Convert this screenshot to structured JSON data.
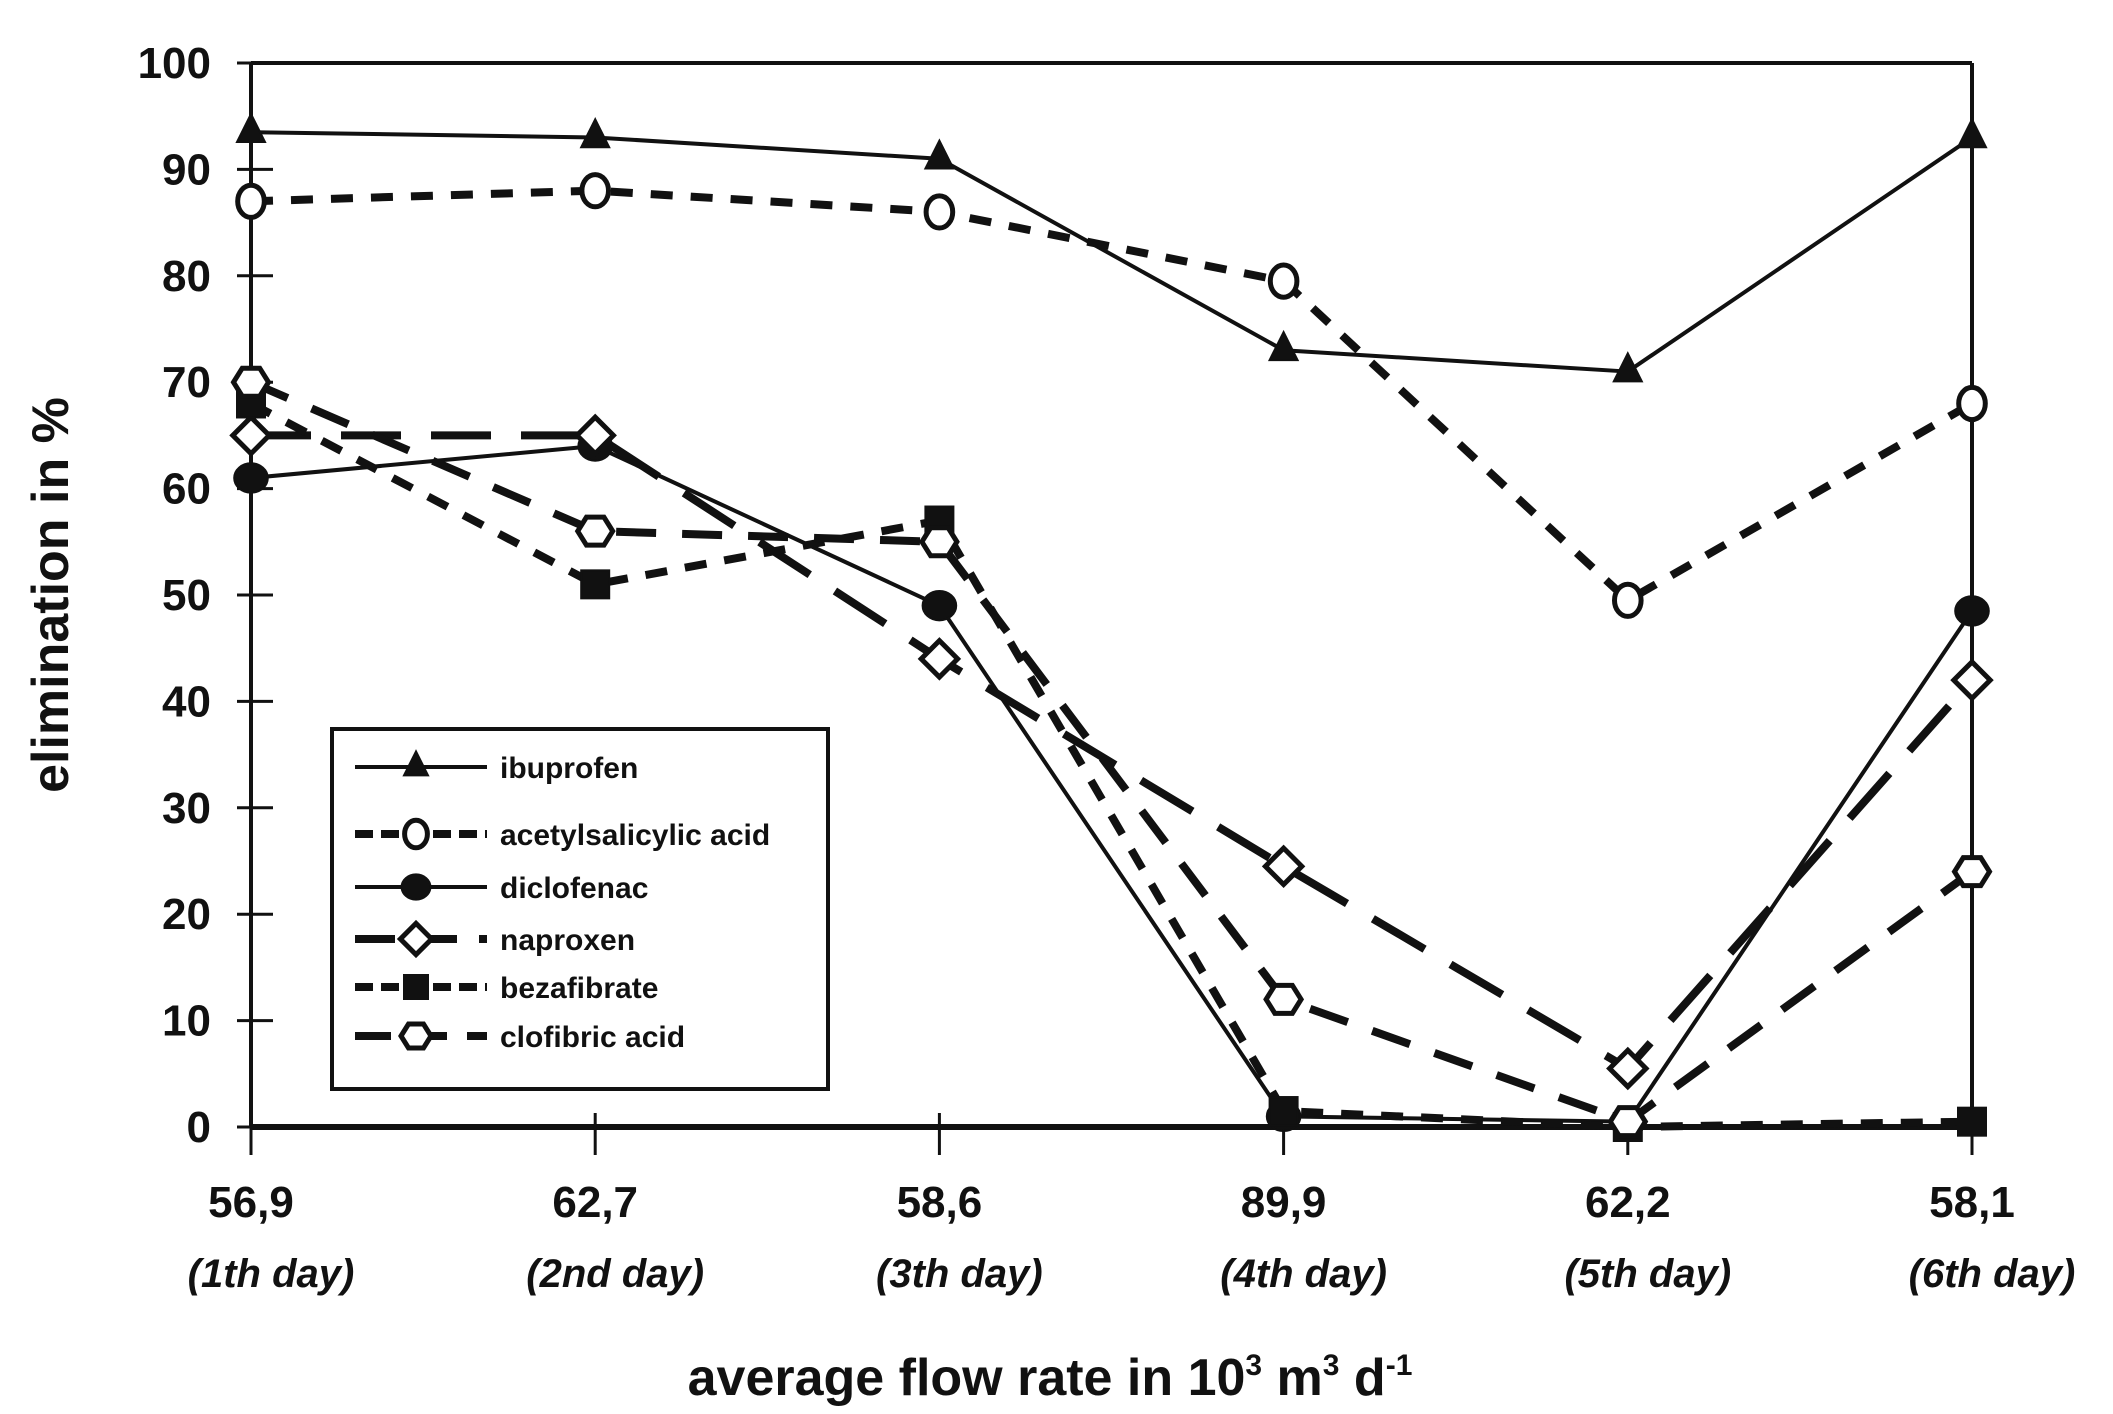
{
  "chart_data": {
    "type": "line",
    "title": "",
    "xlabel": "average flow rate in 10",
    "xlabel_parts": [
      "average flow rate in 10",
      "3",
      " m",
      "3",
      " d",
      "-1"
    ],
    "ylabel": "elimination in %",
    "ylim": [
      0,
      100
    ],
    "yticks": [
      0,
      10,
      20,
      30,
      40,
      50,
      60,
      70,
      80,
      90,
      100
    ],
    "ytick_labels": [
      "0",
      "10",
      "20",
      "30",
      "40",
      "50",
      "60",
      "70",
      "80",
      "90",
      "100"
    ],
    "categories": [
      "56,9",
      "62,7",
      "58,6",
      "89,9",
      "62,2",
      "58,1"
    ],
    "category_sublabels": [
      "(1th day)",
      "(2nd day)",
      "(3th day)",
      "(4th day)",
      "(5th day)",
      "(6th day)"
    ],
    "grid": false,
    "legend_position": "lower-left",
    "series": [
      {
        "name": "ibuprofen",
        "marker": "filled-triangle",
        "line": "solid",
        "values": [
          93.5,
          93,
          91,
          73,
          71,
          93
        ]
      },
      {
        "name": "acetylsalicylic acid",
        "marker": "open-circle",
        "line": "short-dash",
        "values": [
          87,
          88,
          86,
          79.5,
          49.5,
          68
        ]
      },
      {
        "name": "diclofenac",
        "marker": "filled-circle",
        "line": "solid",
        "values": [
          61,
          64,
          49,
          1,
          0.5,
          48.5
        ]
      },
      {
        "name": "naproxen",
        "marker": "open-diamond",
        "line": "long-dash",
        "values": [
          65,
          65,
          44,
          24.5,
          5.5,
          42
        ]
      },
      {
        "name": "bezafibrate",
        "marker": "filled-square",
        "line": "short-dash",
        "values": [
          68,
          51,
          57,
          1.5,
          0,
          0.5
        ]
      },
      {
        "name": "clofibric acid",
        "marker": "open-hexagon",
        "line": "dash",
        "values": [
          70,
          56,
          55,
          12,
          0.5,
          24
        ]
      }
    ]
  }
}
